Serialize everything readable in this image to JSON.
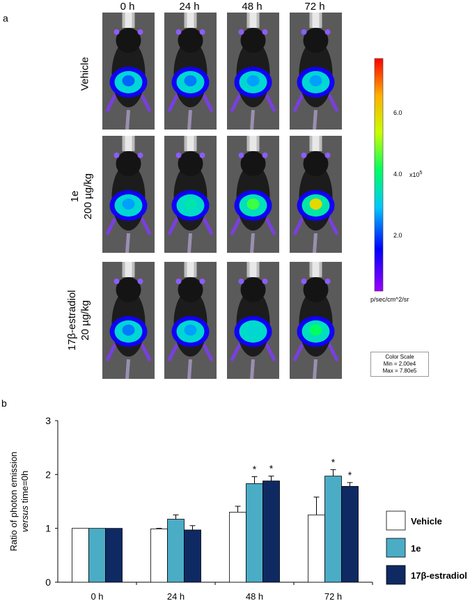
{
  "panel_a": {
    "letter": "a",
    "time_points": [
      "0 h",
      "24 h",
      "48 h",
      "72 h"
    ],
    "groups": [
      {
        "name": "vehicle",
        "lines": [
          "Vehicle"
        ],
        "intensity": [
          0.25,
          0.27,
          0.3,
          0.3
        ]
      },
      {
        "name": "1e",
        "lines": [
          "1e",
          "200 µg/kg"
        ],
        "intensity": [
          0.3,
          0.42,
          0.55,
          0.75
        ]
      },
      {
        "name": "estradiol",
        "lines": [
          "17β-estradiol",
          "20 µg/kg"
        ],
        "intensity": [
          0.27,
          0.3,
          0.38,
          0.5
        ]
      }
    ],
    "color_scale": {
      "ticks": [
        {
          "value": 6.0,
          "label": "6.0"
        },
        {
          "value": 4.0,
          "label": "4.0"
        },
        {
          "value": 2.0,
          "label": "2.0"
        }
      ],
      "exponent_label": "x10",
      "exponent_power": "5",
      "units": "p/sec/cm^2/sr",
      "legend_title": "Color Scale",
      "legend_min": "Min = 2.00e4",
      "legend_max": "Max = 7.80e5",
      "min_value": 0.2,
      "max_value": 7.8
    }
  },
  "chart_data": {
    "type": "bar",
    "panel_letter": "b",
    "title": "",
    "categories": [
      "0 h",
      "24 h",
      "48 h",
      "72 h"
    ],
    "ylabel_line1": "Ratio of photon emission",
    "ylabel_line2_italic": "versus",
    "ylabel_line2_rest": " time=0h",
    "ylim": [
      0,
      3
    ],
    "yticks": [
      0,
      1,
      2,
      3
    ],
    "significance_marker": "*",
    "series": [
      {
        "name": "Vehicle",
        "color": "#ffffff",
        "values": [
          1.0,
          0.99,
          1.3,
          1.25
        ],
        "errors": [
          0,
          0.01,
          0.11,
          0.33
        ],
        "significant": [
          false,
          false,
          false,
          false
        ]
      },
      {
        "name": "1e",
        "color": "#4bacc6",
        "values": [
          1.0,
          1.17,
          1.83,
          1.97
        ],
        "errors": [
          0,
          0.08,
          0.13,
          0.12
        ],
        "significant": [
          false,
          false,
          true,
          true
        ]
      },
      {
        "name": "17β-estradiol",
        "color": "#0f2a63",
        "values": [
          1.0,
          0.97,
          1.88,
          1.78
        ],
        "errors": [
          0,
          0.08,
          0.09,
          0.07
        ],
        "significant": [
          false,
          false,
          true,
          true
        ]
      }
    ]
  }
}
